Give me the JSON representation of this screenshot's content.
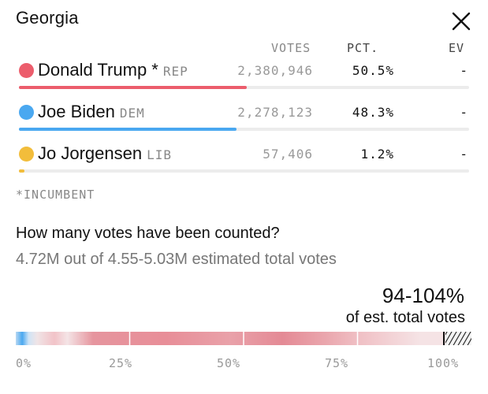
{
  "header": {
    "title": "Georgia",
    "close_icon": "close-icon"
  },
  "columns": {
    "votes": "VOTES",
    "pct": "PCT.",
    "ev": "EV"
  },
  "candidates": [
    {
      "name": "Donald Trump *",
      "party": "REP",
      "votes": "2,380,946",
      "pct": "50.5%",
      "ev": "-",
      "color": "#ec5d6c",
      "share": 0.505
    },
    {
      "name": "Joe Biden",
      "party": "DEM",
      "votes": "2,278,123",
      "pct": "48.3%",
      "ev": "-",
      "color": "#4aa8f0",
      "share": 0.483
    },
    {
      "name": "Jo Jorgensen",
      "party": "LIB",
      "votes": "57,406",
      "pct": "1.2%",
      "ev": "-",
      "color": "#f2bd3b",
      "share": 0.012
    }
  ],
  "footnote": "*INCUMBENT",
  "counted": {
    "question": "How many votes have been counted?",
    "detail": "4.72M out of 4.55-5.03M estimated total votes",
    "range": "94-104%",
    "range_sub": "of est. total votes"
  },
  "progress": {
    "ticks": [
      "0%",
      "25%",
      "50%",
      "75%",
      "100%"
    ],
    "counted_low": 0.94,
    "counted_high": 1.04,
    "red_color": "#e58d97",
    "blue_color": "#4aa8f0"
  }
}
